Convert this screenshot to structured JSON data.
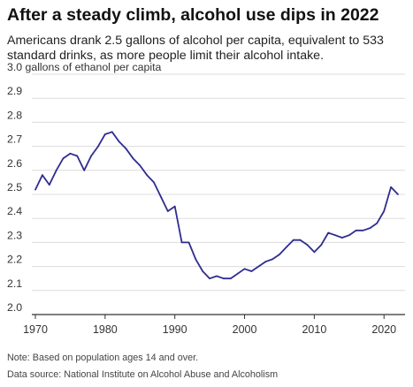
{
  "chart_data": {
    "type": "line",
    "title": "After a steady climb, alcohol use dips in 2022",
    "subtitle": "Americans drank 2.5 gallons of alcohol per capita, equivalent to 533 standard drinks, as more people limit their alcohol intake.",
    "ylabel": "gallons of ethanol per capita",
    "xlabel": "",
    "ylim": [
      2.0,
      3.0
    ],
    "yticks": [
      2.0,
      2.1,
      2.2,
      2.3,
      2.4,
      2.5,
      2.6,
      2.7,
      2.8,
      2.9,
      3.0
    ],
    "xlim": [
      1970,
      2022
    ],
    "xticks": [
      1970,
      1980,
      1990,
      2000,
      2010,
      2020
    ],
    "grid": true,
    "color": "#2f2d8f",
    "series": [
      {
        "x": [
          1970,
          1971,
          1972,
          1973,
          1974,
          1975,
          1976,
          1977,
          1978,
          1979,
          1980,
          1981,
          1982,
          1983,
          1984,
          1985,
          1986,
          1987,
          1988,
          1989,
          1990,
          1991,
          1992,
          1993,
          1994,
          1995,
          1996,
          1997,
          1998,
          1999,
          2000,
          2001,
          2002,
          2003,
          2004,
          2005,
          2006,
          2007,
          2008,
          2009,
          2010,
          2011,
          2012,
          2013,
          2014,
          2015,
          2016,
          2017,
          2018,
          2019,
          2020,
          2021,
          2022
        ],
        "values": [
          2.52,
          2.58,
          2.54,
          2.6,
          2.65,
          2.67,
          2.66,
          2.6,
          2.66,
          2.7,
          2.75,
          2.76,
          2.72,
          2.69,
          2.65,
          2.62,
          2.58,
          2.55,
          2.49,
          2.43,
          2.45,
          2.3,
          2.3,
          2.23,
          2.18,
          2.15,
          2.16,
          2.15,
          2.15,
          2.17,
          2.19,
          2.18,
          2.2,
          2.22,
          2.23,
          2.25,
          2.28,
          2.31,
          2.31,
          2.29,
          2.26,
          2.29,
          2.34,
          2.33,
          2.32,
          2.33,
          2.35,
          2.35,
          2.36,
          2.38,
          2.43,
          2.53,
          2.5
        ]
      }
    ]
  },
  "notes": {
    "note": "Note: Based on population ages 14 and over.",
    "source": "Data source: National Institute on Alcohol Abuse and Alcoholism"
  }
}
